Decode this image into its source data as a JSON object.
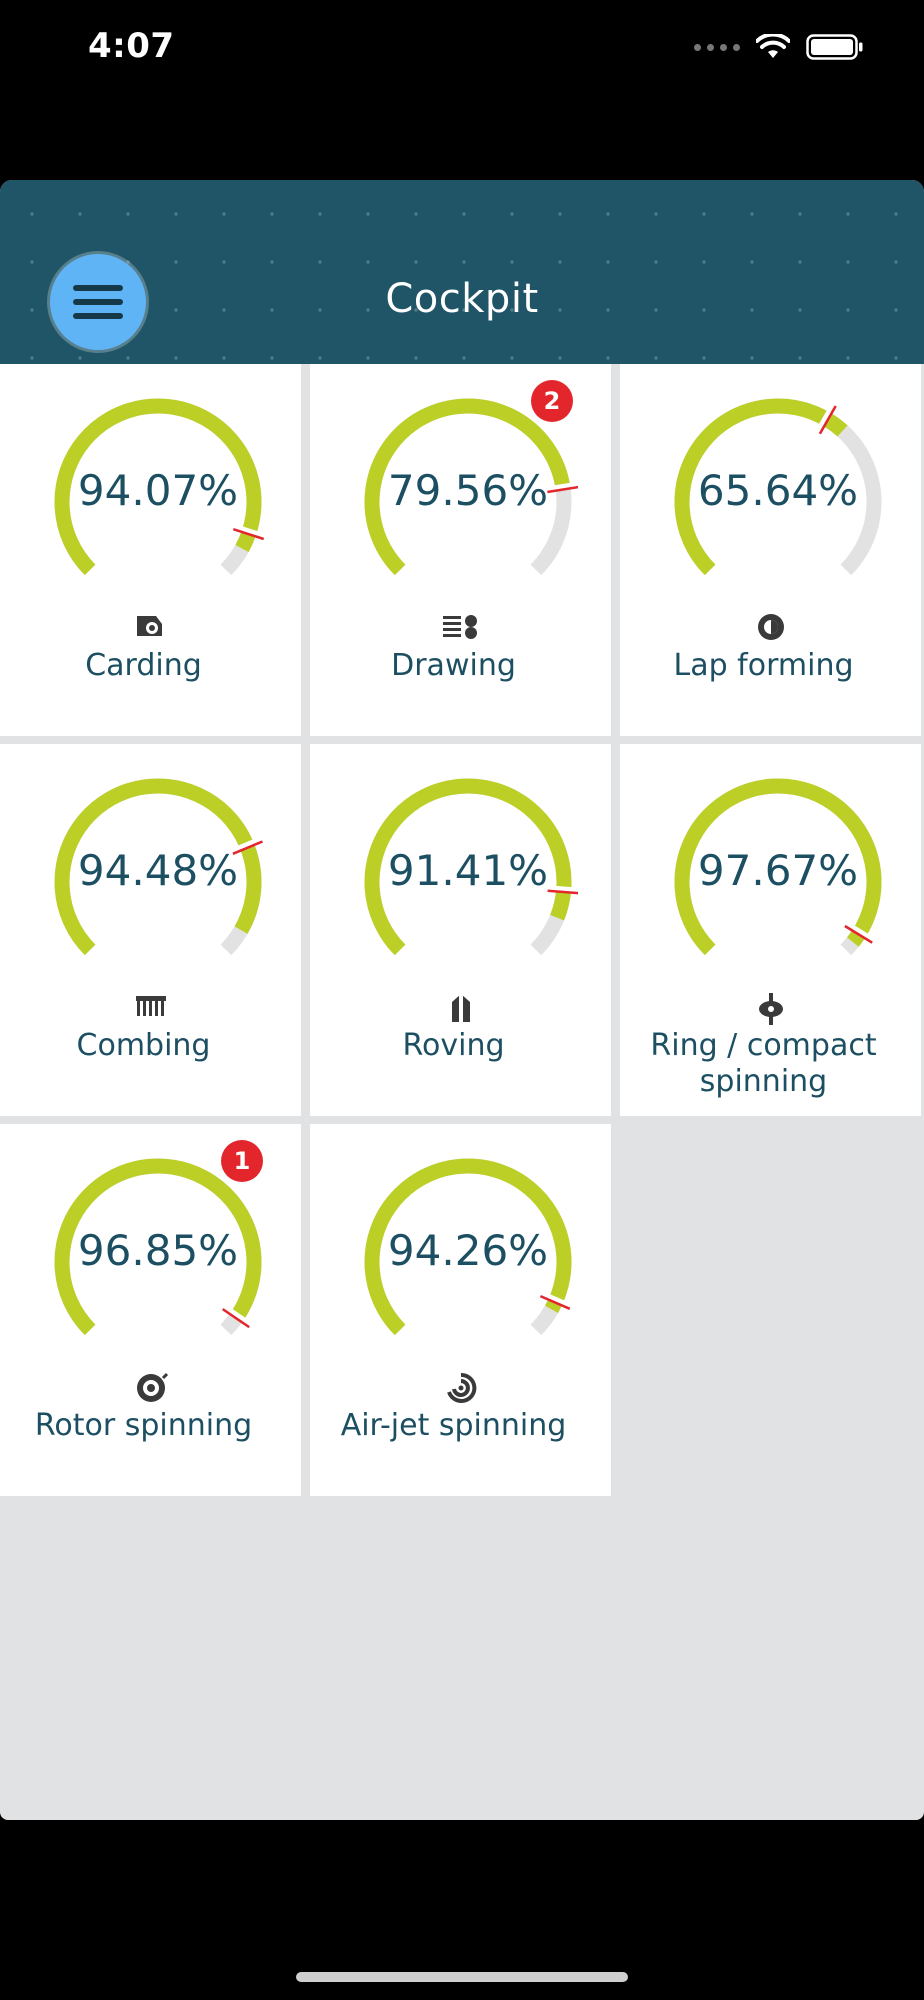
{
  "status_bar": {
    "time": "4:07",
    "icons": [
      "cellular-signal-icon",
      "wifi-icon",
      "battery-icon"
    ]
  },
  "header": {
    "title": "Cockpit",
    "menu_icon": "hamburger-menu-icon"
  },
  "colors": {
    "header_bg": "#1f5566",
    "gauge_fill": "#bccf26",
    "gauge_track": "#e2e2e2",
    "marker": "#e3262b",
    "text": "#1d4f62",
    "menu_button": "#5fb4f5"
  },
  "tiles": [
    {
      "id": "carding",
      "label": "Carding",
      "value_text": "94.07%",
      "value": 94.07,
      "target": 90.0,
      "icon": "carding-icon",
      "badge": ""
    },
    {
      "id": "drawing",
      "label": "Drawing",
      "value_text": "79.56%",
      "value": 79.56,
      "target": 80.0,
      "icon": "drawing-icon",
      "badge": "2"
    },
    {
      "id": "lap-forming",
      "label": "Lap forming",
      "value_text": "65.64%",
      "value": 65.64,
      "target": 61.0,
      "icon": "lap-forming-icon",
      "badge": ""
    },
    {
      "id": "combing",
      "label": "Combing",
      "value_text": "94.48%",
      "value": 94.48,
      "target": 75.0,
      "icon": "combing-icon",
      "badge": ""
    },
    {
      "id": "roving",
      "label": "Roving",
      "value_text": "91.41%",
      "value": 91.41,
      "target": 85.0,
      "icon": "roving-icon",
      "badge": ""
    },
    {
      "id": "ring-compact-spinning",
      "label": "Ring / compact spinning",
      "value_text": "97.67%",
      "value": 97.67,
      "target": 95.0,
      "icon": "ring-spinning-icon",
      "badge": ""
    },
    {
      "id": "rotor-spinning",
      "label": "Rotor spinning",
      "value_text": "96.85%",
      "value": 96.85,
      "target": 96.0,
      "icon": "rotor-spinning-icon",
      "badge": "1"
    },
    {
      "id": "air-jet-spinning",
      "label": "Air-jet spinning",
      "value_text": "94.26%",
      "value": 94.26,
      "target": 92.0,
      "icon": "air-jet-spinning-icon",
      "badge": ""
    }
  ]
}
